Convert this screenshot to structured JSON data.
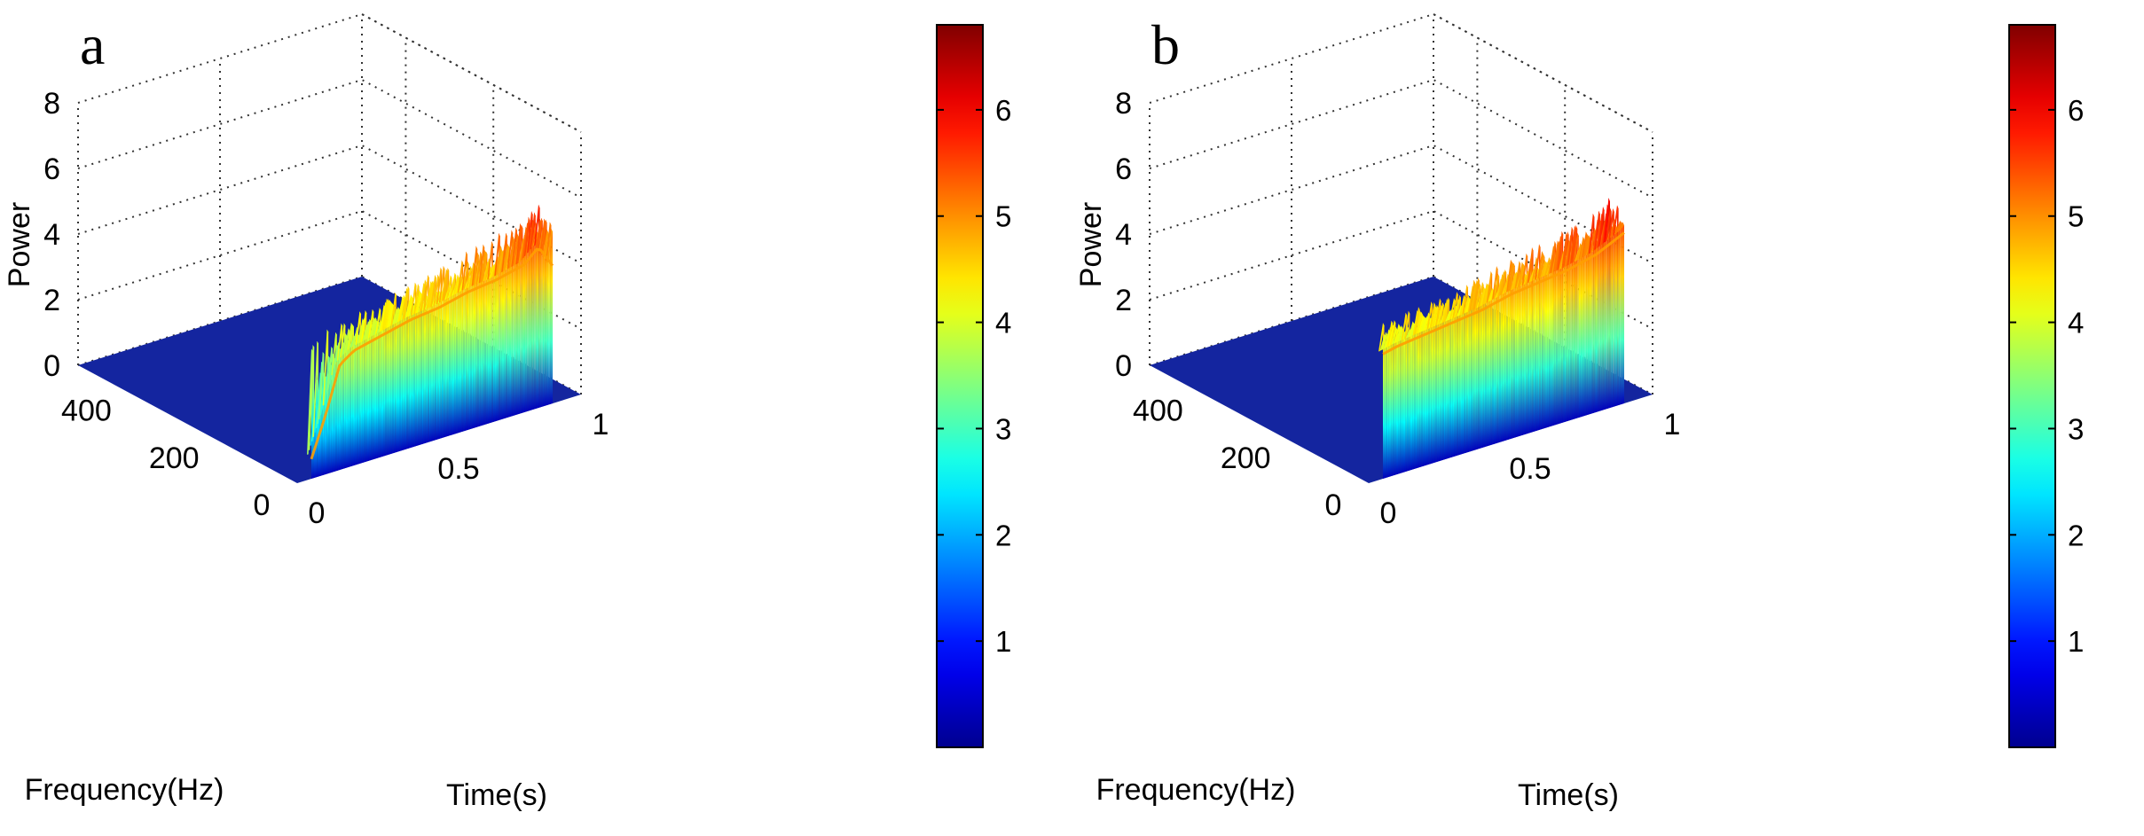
{
  "colors": {
    "floor": "#14259f",
    "high": "#a00000",
    "mid": "#f08a1a",
    "low": "#3a7fe0"
  },
  "chart_data": [
    {
      "type": "surface",
      "panel_label": "a",
      "xlabel": "Time(s)",
      "ylabel": "Frequency(Hz)",
      "zlabel": "Power",
      "x_ticks": [
        "0",
        "0.5",
        "1"
      ],
      "y_ticks": [
        "0",
        "200",
        "400"
      ],
      "z_ticks": [
        "0",
        "2",
        "4",
        "6",
        "8"
      ],
      "colorbar_ticks": [
        "1",
        "2",
        "3",
        "4",
        "5",
        "6"
      ],
      "xlim": [
        0,
        1
      ],
      "ylim": [
        0,
        500
      ],
      "zlim": [
        0,
        8
      ],
      "clim": [
        0,
        6.8
      ],
      "grid": true,
      "active_time_range": [
        0.05,
        0.9
      ],
      "band_hz": [
        0,
        10
      ],
      "ridge": {
        "time": [
          0.05,
          0.1,
          0.15,
          0.2,
          0.3,
          0.4,
          0.5,
          0.6,
          0.7,
          0.8,
          0.85,
          0.9
        ],
        "power": [
          0.6,
          1.8,
          3.2,
          3.5,
          3.7,
          3.9,
          4.0,
          4.2,
          4.3,
          4.5,
          4.9,
          4.2
        ]
      },
      "peak_envelope": {
        "time": [
          0.05,
          0.1,
          0.2,
          0.3,
          0.4,
          0.5,
          0.6,
          0.7,
          0.8,
          0.85,
          0.9
        ],
        "power": [
          4.2,
          4.5,
          4.6,
          4.8,
          5.0,
          5.2,
          5.5,
          5.7,
          5.9,
          6.3,
          5.6
        ]
      }
    },
    {
      "type": "surface",
      "panel_label": "b",
      "xlabel": "Time(s)",
      "ylabel": "Frequency(Hz)",
      "zlabel": "Power",
      "x_ticks": [
        "0",
        "0.5",
        "1"
      ],
      "y_ticks": [
        "0",
        "200",
        "400"
      ],
      "z_ticks": [
        "0",
        "2",
        "4",
        "6",
        "8"
      ],
      "colorbar_ticks": [
        "1",
        "2",
        "3",
        "4",
        "5",
        "6"
      ],
      "xlim": [
        0,
        1
      ],
      "ylim": [
        0,
        500
      ],
      "zlim": [
        0,
        8
      ],
      "clim": [
        0,
        6.8
      ],
      "grid": true,
      "active_time_range": [
        0.05,
        0.9
      ],
      "band_hz": [
        0,
        10
      ],
      "ridge": {
        "time": [
          0.05,
          0.1,
          0.2,
          0.3,
          0.4,
          0.5,
          0.6,
          0.7,
          0.8,
          0.9
        ],
        "power": [
          3.8,
          3.9,
          4.0,
          4.1,
          4.2,
          4.4,
          4.5,
          4.6,
          4.8,
          5.2
        ]
      },
      "peak_envelope": {
        "time": [
          0.05,
          0.1,
          0.2,
          0.3,
          0.4,
          0.5,
          0.6,
          0.7,
          0.8,
          0.85,
          0.9
        ],
        "power": [
          4.8,
          4.9,
          5.0,
          5.1,
          5.3,
          5.5,
          5.7,
          5.9,
          6.1,
          6.5,
          5.8
        ]
      }
    }
  ]
}
